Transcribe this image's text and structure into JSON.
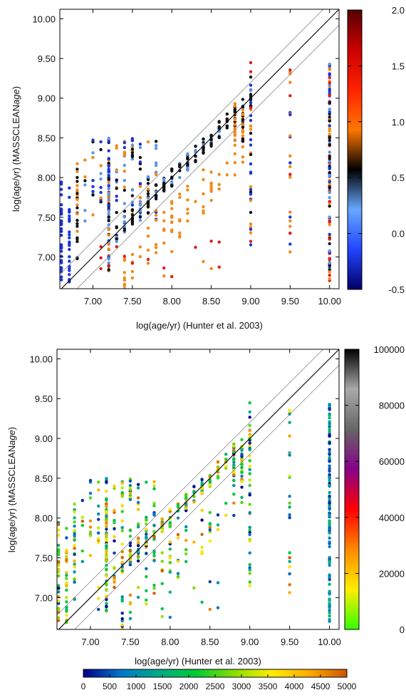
{
  "chart_data": [
    {
      "type": "scatter",
      "panel": "top",
      "xlabel": "log(age/yr) (Hunter et al. 2003)",
      "ylabel": "log(age/yr) (MASSCLEAN",
      "ylabel_italic": "age",
      "ylabel_close": ")",
      "xlim": [
        6.58,
        10.12
      ],
      "ylim": [
        6.6,
        10.12
      ],
      "x_ticks": [
        "7.00",
        "7.50",
        "8.00",
        "8.50",
        "9.00",
        "9.50",
        "10.00"
      ],
      "y_ticks": [
        "7.00",
        "7.50",
        "8.00",
        "8.50",
        "9.00",
        "9.50",
        "10.00"
      ],
      "reference_lines": [
        "one-to-one",
        "offset +0.2",
        "offset -0.2"
      ],
      "colorbar": {
        "orientation": "vertical",
        "position": "right",
        "range": [
          -0.5,
          2.0
        ],
        "ticks": [
          "-0.5",
          "0.0",
          "0.5",
          "1.0",
          "1.5",
          "2.0"
        ],
        "colormap": [
          "#000066",
          "#2244ff",
          "#66a8ff",
          "#000000",
          "#ff7700",
          "#ff2200",
          "#cc0000",
          "#550000"
        ]
      },
      "color_meaning": "difference between the two age estimates",
      "points_description": "approx. 750 clusters; x on a 0.1 dex grid",
      "points_seed": 11
    },
    {
      "type": "scatter",
      "panel": "bottom",
      "xlabel": "log(age/yr) (Hunter et al. 2003)",
      "ylabel": "log(age/yr) (MASSCLEAN",
      "ylabel_italic": "age",
      "ylabel_close": ")",
      "xlim": [
        6.58,
        10.12
      ],
      "ylim": [
        6.6,
        10.12
      ],
      "x_ticks": [
        "7.00",
        "7.50",
        "8.00",
        "8.50",
        "9.00",
        "9.50",
        "10.00"
      ],
      "y_ticks": [
        "7.00",
        "7.50",
        "8.00",
        "8.50",
        "9.00",
        "9.50",
        "10.00"
      ],
      "reference_lines": [
        "one-to-one",
        "offset +0.2",
        "offset -0.2"
      ],
      "colorbar": {
        "orientation": "vertical",
        "position": "right",
        "range": [
          0,
          100000
        ],
        "ticks": [
          "0",
          "20000",
          "40000",
          "60000",
          "80000",
          "100000"
        ],
        "colormap": [
          "#33ff00",
          "#ffee00",
          "#ff8800",
          "#ff0000",
          "#880088",
          "#666666",
          "#aaaaaa",
          "#000000"
        ]
      },
      "colorbar2": {
        "orientation": "horizontal",
        "position": "bottom",
        "range": [
          0,
          5000
        ],
        "ticks": [
          "0",
          "500",
          "1000",
          "1500",
          "2000",
          "2500",
          "3000",
          "3500",
          "4000",
          "4500",
          "5000"
        ],
        "colormap": [
          "#000088",
          "#0077cc",
          "#00aa88",
          "#00cc33",
          "#88dd00",
          "#ffee00",
          "#ffaa00",
          "#cc5500"
        ]
      },
      "color_meaning": "cluster mass",
      "points_description": "approx. 750 clusters; x on a 0.1 dex grid",
      "points_seed": 11
    }
  ]
}
